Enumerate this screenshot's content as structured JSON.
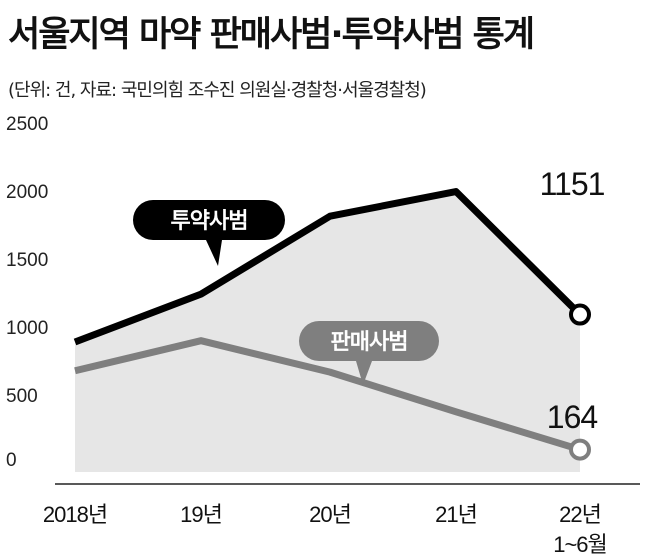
{
  "title": "서울지역 마약 판매사범·투약사범 통계",
  "subtitle": "(단위: 건, 자료: 국민의힘 조수진 의원실·경찰청·서울경찰청)",
  "colors": {
    "use_line": "#000000",
    "sale_line": "#7f7f7f",
    "area_fill": "#e6e6e6",
    "use_label_bg": "#000000",
    "sale_label_bg": "#7f7f7f"
  },
  "chart_data": {
    "type": "line",
    "categories": [
      "2018년",
      "19년",
      "20년",
      "21년",
      "22년 1~6월"
    ],
    "yticks": [
      "2500",
      "2000",
      "1500",
      "1000",
      "500",
      "0"
    ],
    "ylim": [
      0,
      2500
    ],
    "grid": false,
    "series": [
      {
        "name": "투약사범",
        "values": [
          950,
          1300,
          1870,
          2050,
          1151
        ],
        "end_label": "1151",
        "style": "area-line"
      },
      {
        "name": "판매사범",
        "values": [
          740,
          960,
          730,
          440,
          164
        ],
        "end_label": "164",
        "style": "line"
      }
    ]
  }
}
